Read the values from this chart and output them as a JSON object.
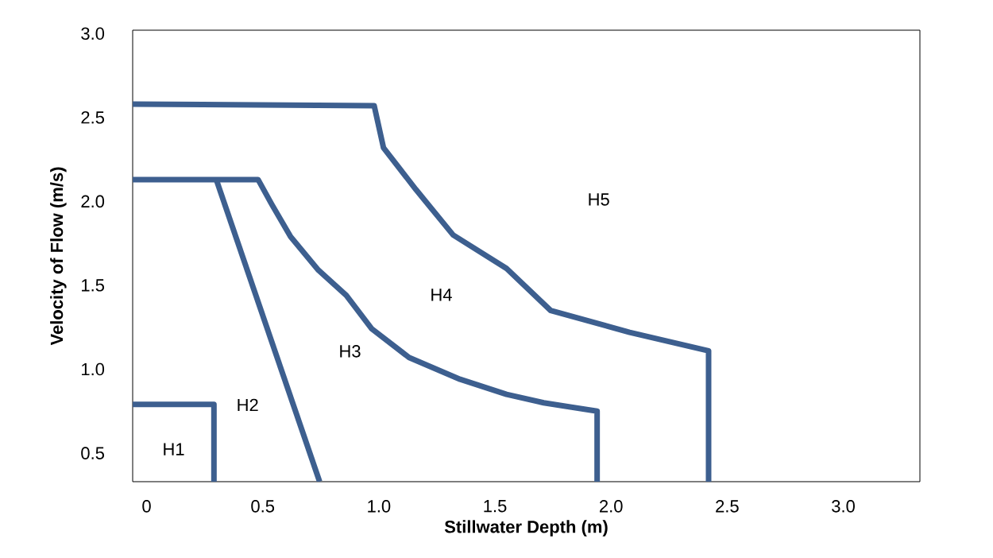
{
  "chart_data": {
    "type": "line",
    "xlabel": "Stillwater Depth (m)",
    "ylabel": "Velocity of Flow (m/s)",
    "xlim": [
      -0.06,
      3.33
    ],
    "ylim": [
      0.33,
      3.02
    ],
    "xticks": [
      0,
      0.5,
      {
        "value": 1,
        "label": "1.0"
      },
      1.5,
      {
        "value": 2,
        "label": "2.0"
      },
      2.5,
      {
        "value": 3,
        "label": "3.0"
      }
    ],
    "yticks": [
      0.5,
      {
        "value": 1,
        "label": "1.0"
      },
      1.5,
      {
        "value": 2,
        "label": "2.0"
      },
      2.5,
      {
        "value": 3,
        "label": "3.0"
      }
    ],
    "grid": false,
    "marker": "none",
    "line_style": "solid",
    "series": [
      {
        "color": "#3d5f8f",
        "x": [
          -0.06,
          0.29,
          0.29
        ],
        "values": [
          0.79,
          0.79,
          0.33
        ]
      },
      {
        "color": "#3d5f8f",
        "x": [
          0.3,
          0.745
        ],
        "values": [
          2.13,
          0.33
        ]
      },
      {
        "color": "#3d5f8f",
        "x": [
          -0.06,
          0.48,
          0.54,
          0.62,
          0.74,
          0.86,
          0.97,
          1.13,
          1.35,
          1.55,
          1.71,
          1.94,
          1.94
        ],
        "values": [
          2.13,
          2.13,
          1.98,
          1.79,
          1.59,
          1.44,
          1.24,
          1.07,
          0.94,
          0.85,
          0.8,
          0.75,
          0.33
        ]
      },
      {
        "color": "#3d5f8f",
        "x": [
          -0.06,
          0.98,
          1.02,
          1.16,
          1.32,
          1.55,
          1.74,
          2.08,
          2.42,
          2.42
        ],
        "values": [
          2.58,
          2.57,
          2.32,
          2.07,
          1.8,
          1.6,
          1.35,
          1.22,
          1.11,
          0.33
        ]
      }
    ],
    "annotations": [
      "H1",
      "H2",
      "H3",
      "H4",
      "H5"
    ]
  }
}
